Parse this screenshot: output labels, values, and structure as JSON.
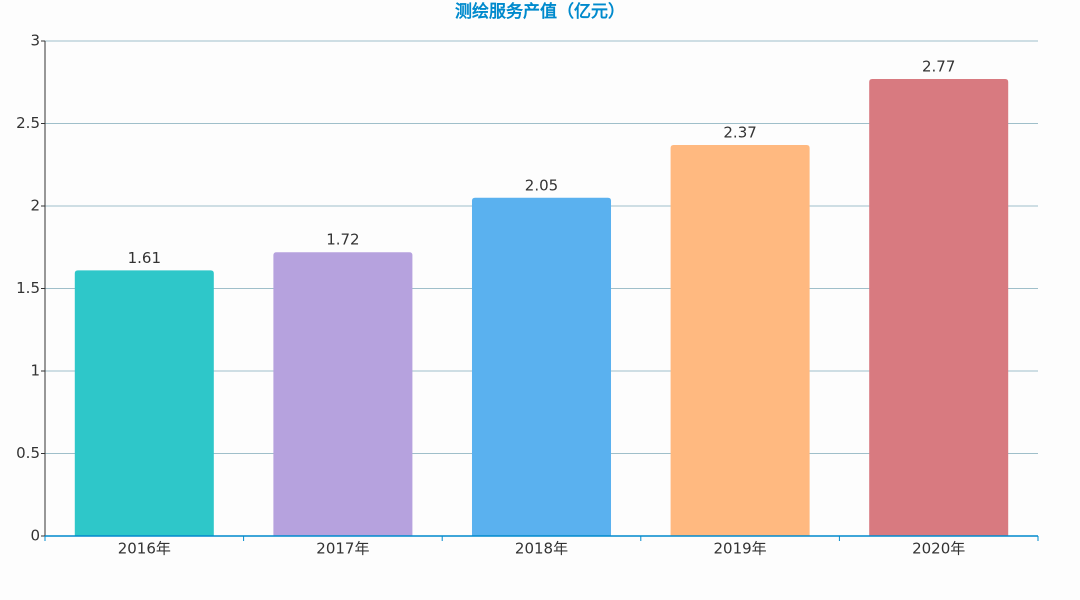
{
  "chart_data": {
    "type": "bar",
    "title": "测绘服务产值（亿元）",
    "categories": [
      "2016年",
      "2017年",
      "2018年",
      "2019年",
      "2020年"
    ],
    "values": [
      1.61,
      1.72,
      2.05,
      2.37,
      2.77
    ],
    "colors": [
      "#2ec7c9",
      "#b6a2de",
      "#5ab1ef",
      "#ffb980",
      "#d87a80"
    ],
    "ylim": [
      0,
      3
    ],
    "yticks": [
      0,
      0.5,
      1,
      1.5,
      2,
      2.5,
      3
    ],
    "grid": true
  }
}
